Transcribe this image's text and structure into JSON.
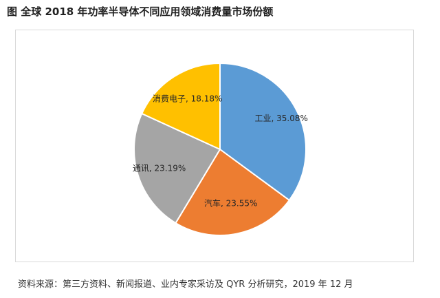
{
  "title": "图  全球 2018 年功率半导体不同应用领域消费量市场份额",
  "source": "资料来源：第三方资料、新闻报道、业内专家采访及 QYR 分析研究，2019 年 12 月",
  "chart_data": {
    "type": "pie",
    "title": "",
    "start_angle_deg": 0,
    "direction": "clockwise",
    "slices": [
      {
        "label": "工业",
        "value": 35.08,
        "text": "工业, 35.08%",
        "color": "#5b9bd5"
      },
      {
        "label": "汽车",
        "value": 23.55,
        "text": "汽车, 23.55%",
        "color": "#ed7d31"
      },
      {
        "label": "通讯",
        "value": 23.19,
        "text": "通讯, 23.19%",
        "color": "#a5a5a5"
      },
      {
        "label": "消费电子",
        "value": 18.18,
        "text": "消费电子, 18.18%",
        "color": "#ffc000"
      }
    ]
  }
}
